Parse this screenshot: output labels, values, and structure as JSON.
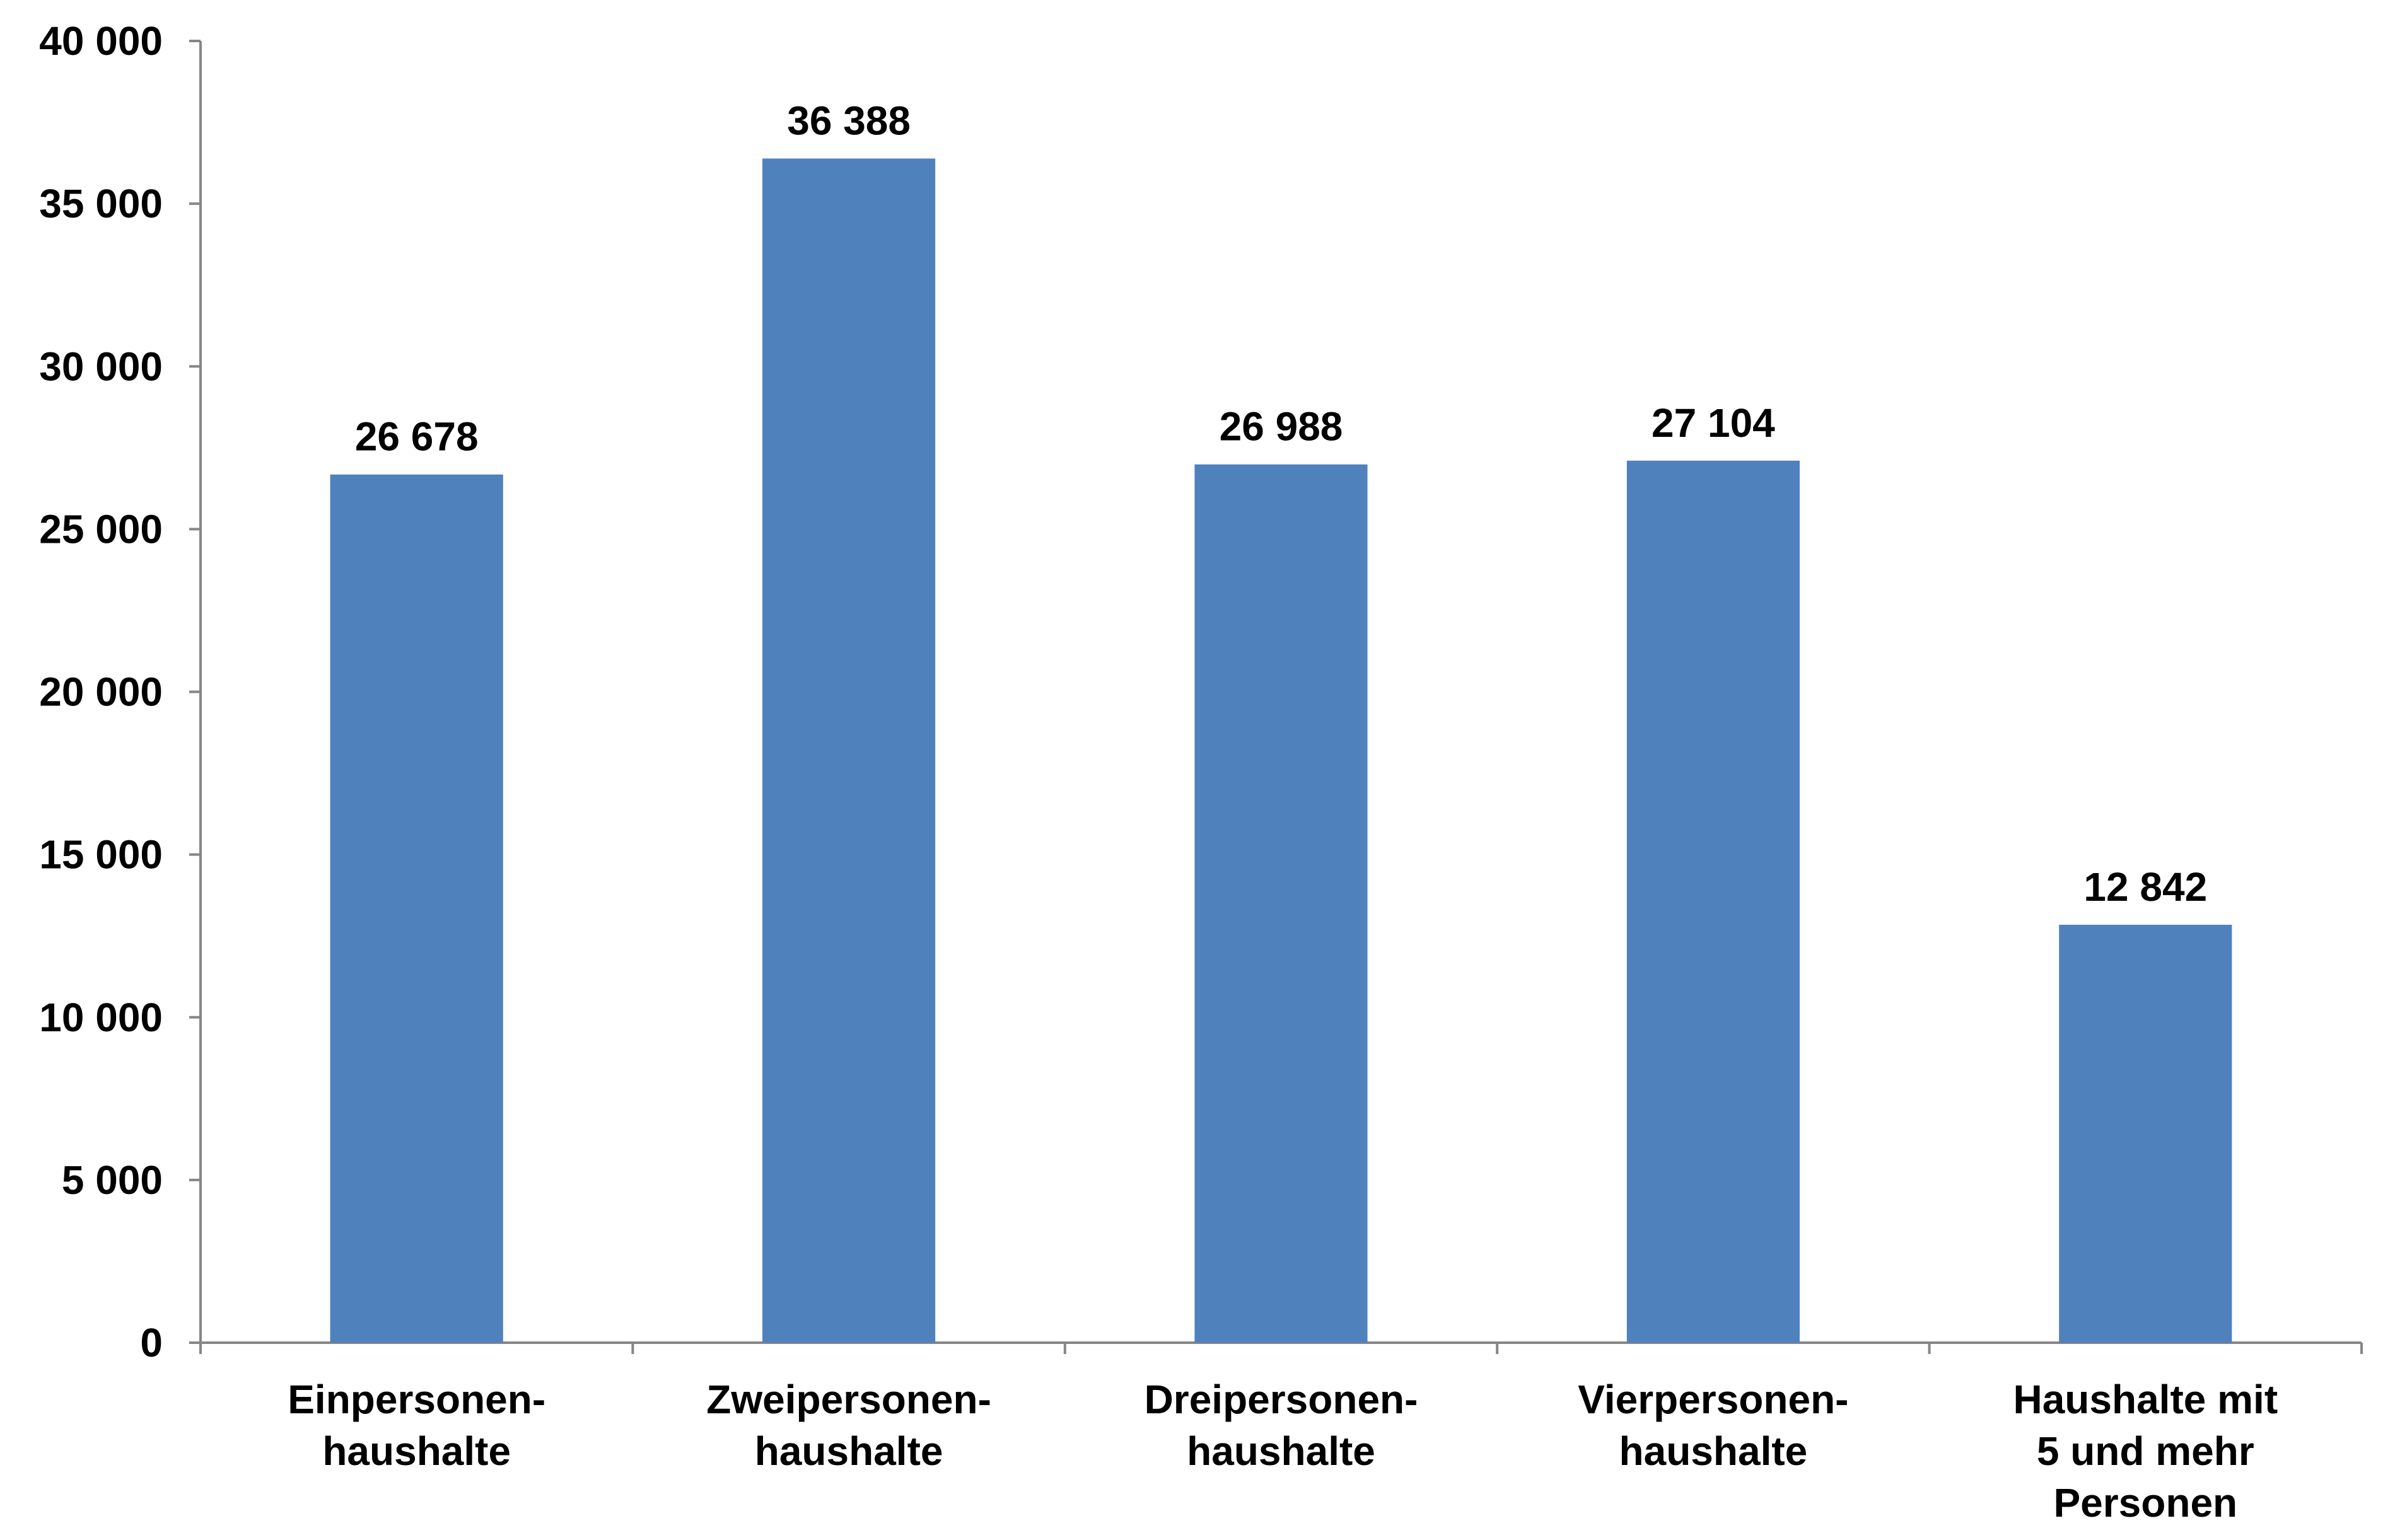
{
  "chart_data": {
    "type": "bar",
    "categories": [
      [
        "Einpersonen-",
        "haushalte"
      ],
      [
        "Zweipersonen-",
        "haushalte"
      ],
      [
        "Dreipersonen-",
        "haushalte"
      ],
      [
        "Vierpersonen-",
        "haushalte"
      ],
      [
        "Haushalte mit",
        "5 und mehr",
        "Personen"
      ]
    ],
    "values": [
      26678,
      36388,
      26988,
      27104,
      12842
    ],
    "value_labels": [
      "26 678",
      "36 388",
      "26 988",
      "27 104",
      "12 842"
    ],
    "yticks": [
      0,
      5000,
      10000,
      15000,
      20000,
      25000,
      30000,
      35000,
      40000
    ],
    "ytick_labels": [
      "0",
      "5 000",
      "10 000",
      "15 000",
      "20 000",
      "25 000",
      "30 000",
      "35 000",
      "40 000"
    ],
    "ylim": [
      0,
      40000
    ],
    "title": "",
    "xlabel": "",
    "ylabel": "",
    "grid": false,
    "bar_color": "#4F81BD",
    "axis_color": "#868686"
  }
}
